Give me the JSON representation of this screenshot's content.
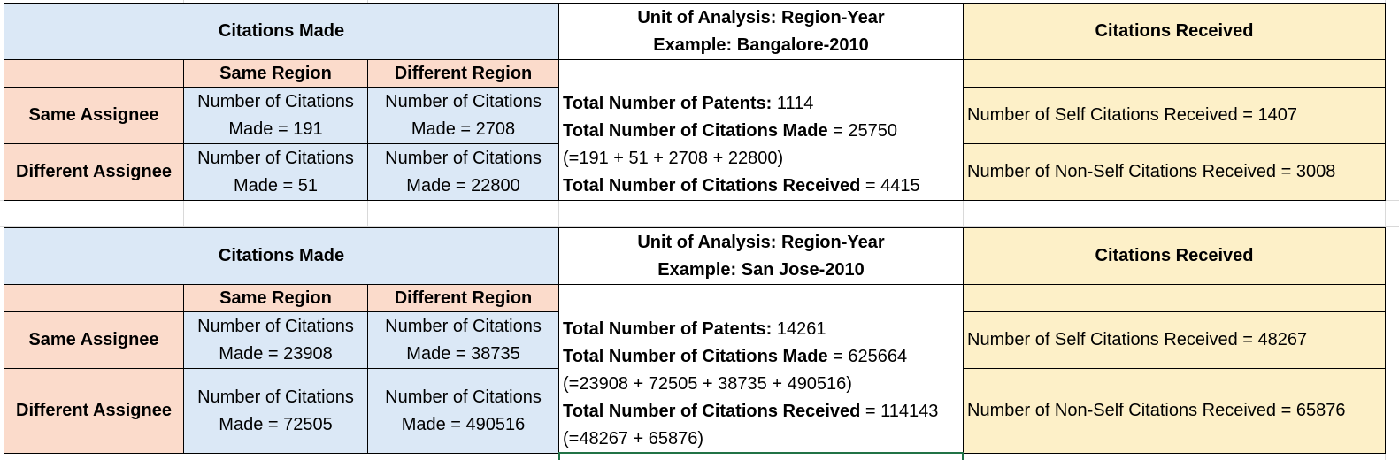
{
  "tables": [
    {
      "citations_made_header": "Citations Made",
      "unit_line1": "Unit of Analysis: Region-Year",
      "unit_line2": "Example: Bangalore-2010",
      "citations_received_header": "Citations Received",
      "col_same_region": "Same Region",
      "col_different_region": "Different Region",
      "row_same_assignee": "Same Assignee",
      "row_different_assignee": "Different Assignee",
      "cell_sa_sr": [
        "Number of Citations",
        "Made = 191"
      ],
      "cell_sa_dr": [
        "Number of Citations",
        "Made = 2708"
      ],
      "cell_da_sr": [
        "Number of Citations",
        "Made = 51"
      ],
      "cell_da_dr": [
        "Number of Citations",
        "Made = 22800"
      ],
      "summary": {
        "patents_label": "Total Number of Patents:",
        "patents_value": " 1114",
        "made_label": "Total Number of Citations Made",
        "made_value": " = 25750",
        "made_breakdown": "(=191 + 51 + 2708 + 22800)",
        "received_label": "Total Number of Citations Received",
        "received_value": " = 4415",
        "received_breakdown": ""
      },
      "self_received": "Number of Self Citations Received = 1407",
      "nonself_received": "Number of Non-Self Citations Received = 3008"
    },
    {
      "citations_made_header": "Citations Made",
      "unit_line1": "Unit of Analysis: Region-Year",
      "unit_line2": "Example: San Jose-2010",
      "citations_received_header": "Citations Received",
      "col_same_region": "Same Region",
      "col_different_region": "Different Region",
      "row_same_assignee": "Same Assignee",
      "row_different_assignee": "Different Assignee",
      "cell_sa_sr": [
        "Number of Citations",
        "Made = 23908"
      ],
      "cell_sa_dr": [
        "Number of Citations",
        "Made = 38735"
      ],
      "cell_da_sr": [
        "Number of Citations",
        "Made = 72505"
      ],
      "cell_da_dr": [
        "Number of Citations",
        "Made = 490516"
      ],
      "summary": {
        "patents_label": "Total Number of Patents:",
        "patents_value": " 14261",
        "made_label": "Total Number of Citations Made",
        "made_value": " = 625664",
        "made_breakdown": "(=23908 + 72505 + 38735 + 490516)",
        "received_label": "Total Number of Citations Received",
        "received_value": " = 114143",
        "received_breakdown": "(=48267 + 65876)"
      },
      "self_received": "Number of Self Citations Received = 48267",
      "nonself_received": "Number of Non-Self Citations Received = 65876"
    }
  ]
}
